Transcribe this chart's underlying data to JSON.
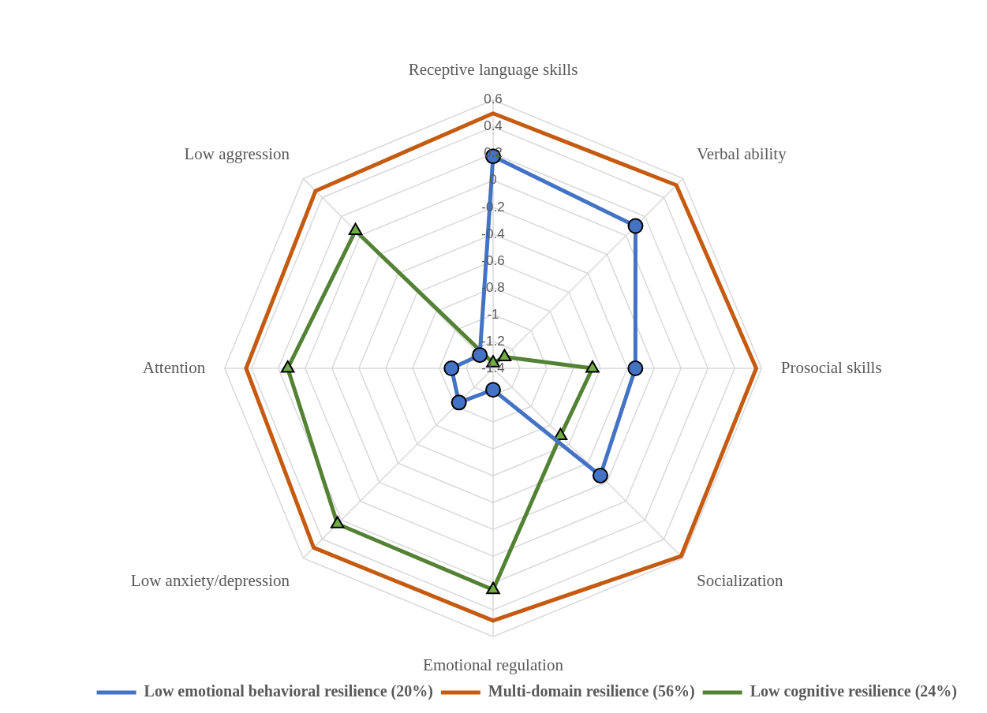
{
  "chart_data": {
    "type": "radar",
    "categories": [
      "Receptive language skills",
      "Verbal ability",
      "Prosocial skills",
      "Socialization",
      "Emotional regulation",
      "Low anxiety/depression",
      "Attention",
      "Low aggression"
    ],
    "series": [
      {
        "name": "Low emotional behavioral resilience (20%)",
        "color": "#4472c4",
        "marker": "circle",
        "values": [
          0.18,
          0.1,
          -0.34,
          -0.27,
          -1.24,
          -1.04,
          -1.09,
          -1.26
        ]
      },
      {
        "name": "Multi-domain resilience (56%)",
        "color": "#c55a11",
        "marker": "none",
        "values": [
          0.5,
          0.53,
          0.56,
          0.58,
          0.48,
          0.49,
          0.44,
          0.47
        ]
      },
      {
        "name": "Low cognitive resilience (24%)",
        "color": "#548235",
        "marker": "triangle",
        "values": [
          -1.36,
          -1.28,
          -0.66,
          -0.69,
          0.25,
          0.24,
          0.13,
          0.05
        ]
      }
    ],
    "ylim": [
      -1.4,
      0.6
    ],
    "yticks": [
      -1.4,
      -1.2,
      -1,
      -0.8,
      -0.6,
      -0.4,
      -0.2,
      0,
      0.2,
      0.4,
      0.6
    ],
    "grid": true,
    "legend": "bottom right"
  }
}
